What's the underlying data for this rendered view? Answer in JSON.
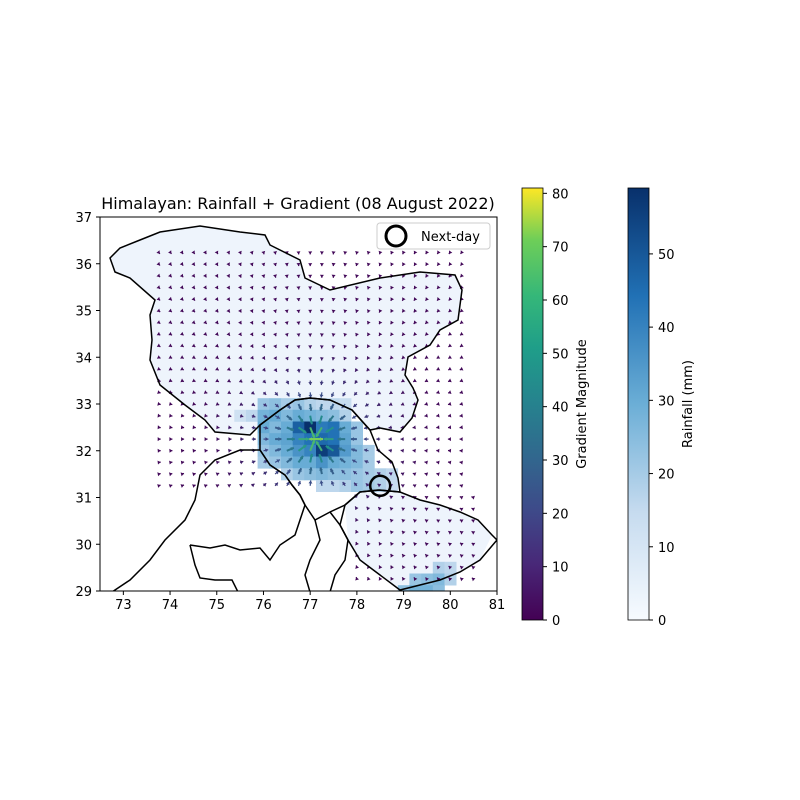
{
  "chart_data": {
    "type": "heatmap",
    "title": "Himalayan: Rainfall + Gradient (08 August 2022)",
    "xlabel": "",
    "ylabel": "",
    "xlim": [
      72.5,
      81
    ],
    "ylim": [
      29,
      37
    ],
    "x_ticks": [
      "73",
      "74",
      "75",
      "76",
      "77",
      "78",
      "79",
      "80",
      "81"
    ],
    "y_ticks": [
      "29",
      "30",
      "31",
      "32",
      "33",
      "34",
      "35",
      "36",
      "37"
    ],
    "grid_resolution_deg": 0.25,
    "rainfall_cells": [
      {
        "lon": 76.0,
        "lat": 33.0,
        "mm": 22
      },
      {
        "lon": 76.25,
        "lat": 33.0,
        "mm": 24
      },
      {
        "lon": 76.5,
        "lat": 33.0,
        "mm": 20
      },
      {
        "lon": 76.75,
        "lat": 33.0,
        "mm": 22
      },
      {
        "lon": 77.0,
        "lat": 33.0,
        "mm": 18
      },
      {
        "lon": 77.25,
        "lat": 33.0,
        "mm": 16
      },
      {
        "lon": 77.5,
        "lat": 33.0,
        "mm": 16
      },
      {
        "lon": 77.75,
        "lat": 33.0,
        "mm": 14
      },
      {
        "lon": 75.5,
        "lat": 32.75,
        "mm": 12
      },
      {
        "lon": 75.75,
        "lat": 32.75,
        "mm": 16
      },
      {
        "lon": 76.0,
        "lat": 32.75,
        "mm": 28
      },
      {
        "lon": 76.25,
        "lat": 32.75,
        "mm": 30
      },
      {
        "lon": 76.5,
        "lat": 32.75,
        "mm": 26
      },
      {
        "lon": 76.75,
        "lat": 32.75,
        "mm": 30
      },
      {
        "lon": 77.0,
        "lat": 32.75,
        "mm": 28
      },
      {
        "lon": 77.25,
        "lat": 32.75,
        "mm": 26
      },
      {
        "lon": 77.5,
        "lat": 32.75,
        "mm": 24
      },
      {
        "lon": 77.75,
        "lat": 32.75,
        "mm": 18
      },
      {
        "lon": 76.0,
        "lat": 32.5,
        "mm": 30
      },
      {
        "lon": 76.25,
        "lat": 32.5,
        "mm": 26
      },
      {
        "lon": 76.5,
        "lat": 32.5,
        "mm": 30
      },
      {
        "lon": 76.75,
        "lat": 32.5,
        "mm": 48
      },
      {
        "lon": 77.0,
        "lat": 32.5,
        "mm": 59
      },
      {
        "lon": 77.25,
        "lat": 32.5,
        "mm": 42
      },
      {
        "lon": 77.5,
        "lat": 32.5,
        "mm": 44
      },
      {
        "lon": 77.75,
        "lat": 32.5,
        "mm": 30
      },
      {
        "lon": 78.0,
        "lat": 32.5,
        "mm": 22
      },
      {
        "lon": 76.0,
        "lat": 32.25,
        "mm": 26
      },
      {
        "lon": 76.25,
        "lat": 32.25,
        "mm": 30
      },
      {
        "lon": 76.5,
        "lat": 32.25,
        "mm": 32
      },
      {
        "lon": 76.75,
        "lat": 32.25,
        "mm": 40
      },
      {
        "lon": 77.0,
        "lat": 32.25,
        "mm": 44
      },
      {
        "lon": 77.25,
        "lat": 32.25,
        "mm": 46
      },
      {
        "lon": 77.5,
        "lat": 32.25,
        "mm": 44
      },
      {
        "lon": 77.75,
        "lat": 32.25,
        "mm": 32
      },
      {
        "lon": 78.0,
        "lat": 32.25,
        "mm": 22
      },
      {
        "lon": 76.0,
        "lat": 32.0,
        "mm": 22
      },
      {
        "lon": 76.25,
        "lat": 32.0,
        "mm": 26
      },
      {
        "lon": 76.5,
        "lat": 32.0,
        "mm": 30
      },
      {
        "lon": 76.75,
        "lat": 32.0,
        "mm": 36
      },
      {
        "lon": 77.0,
        "lat": 32.0,
        "mm": 40
      },
      {
        "lon": 77.25,
        "lat": 32.0,
        "mm": 56
      },
      {
        "lon": 77.5,
        "lat": 32.0,
        "mm": 50
      },
      {
        "lon": 77.75,
        "lat": 32.0,
        "mm": 34
      },
      {
        "lon": 78.0,
        "lat": 32.0,
        "mm": 26
      },
      {
        "lon": 78.25,
        "lat": 32.0,
        "mm": 20
      },
      {
        "lon": 76.0,
        "lat": 31.75,
        "mm": 20
      },
      {
        "lon": 76.25,
        "lat": 31.75,
        "mm": 22
      },
      {
        "lon": 76.5,
        "lat": 31.75,
        "mm": 26
      },
      {
        "lon": 76.75,
        "lat": 31.75,
        "mm": 30
      },
      {
        "lon": 77.0,
        "lat": 31.75,
        "mm": 30
      },
      {
        "lon": 77.25,
        "lat": 31.75,
        "mm": 36
      },
      {
        "lon": 77.5,
        "lat": 31.75,
        "mm": 30
      },
      {
        "lon": 77.75,
        "lat": 31.75,
        "mm": 28
      },
      {
        "lon": 78.0,
        "lat": 31.75,
        "mm": 26
      },
      {
        "lon": 78.25,
        "lat": 31.75,
        "mm": 20
      },
      {
        "lon": 76.5,
        "lat": 31.5,
        "mm": 18
      },
      {
        "lon": 76.75,
        "lat": 31.5,
        "mm": 22
      },
      {
        "lon": 77.0,
        "lat": 31.5,
        "mm": 24
      },
      {
        "lon": 77.25,
        "lat": 31.5,
        "mm": 26
      },
      {
        "lon": 77.5,
        "lat": 31.5,
        "mm": 24
      },
      {
        "lon": 77.75,
        "lat": 31.5,
        "mm": 24
      },
      {
        "lon": 78.0,
        "lat": 31.5,
        "mm": 22
      },
      {
        "lon": 78.25,
        "lat": 31.5,
        "mm": 20
      },
      {
        "lon": 78.5,
        "lat": 31.5,
        "mm": 18
      },
      {
        "lon": 78.75,
        "lat": 31.5,
        "mm": 16
      },
      {
        "lon": 77.25,
        "lat": 31.25,
        "mm": 16
      },
      {
        "lon": 77.5,
        "lat": 31.25,
        "mm": 16
      },
      {
        "lon": 77.75,
        "lat": 31.25,
        "mm": 18
      },
      {
        "lon": 78.0,
        "lat": 31.25,
        "mm": 22
      },
      {
        "lon": 78.25,
        "lat": 31.25,
        "mm": 20
      },
      {
        "lon": 78.5,
        "lat": 31.25,
        "mm": 18
      },
      {
        "lon": 78.75,
        "lat": 31.25,
        "mm": 14
      },
      {
        "lon": 79.75,
        "lat": 29.5,
        "mm": 18
      },
      {
        "lon": 80.0,
        "lat": 29.5,
        "mm": 16
      },
      {
        "lon": 79.25,
        "lat": 29.25,
        "mm": 22
      },
      {
        "lon": 79.5,
        "lat": 29.25,
        "mm": 24
      },
      {
        "lon": 79.75,
        "lat": 29.25,
        "mm": 26
      },
      {
        "lon": 80.0,
        "lat": 29.25,
        "mm": 18
      },
      {
        "lon": 79.0,
        "lat": 29.0,
        "mm": 24
      },
      {
        "lon": 79.25,
        "lat": 29.0,
        "mm": 28
      },
      {
        "lon": 79.5,
        "lat": 29.0,
        "mm": 28
      },
      {
        "lon": 79.75,
        "lat": 29.0,
        "mm": 24
      }
    ],
    "rainfall_background_mm": 3,
    "gradient_hotspot": {
      "lon": 77.1,
      "lat": 32.25,
      "max_magnitude": 80
    },
    "next_day_marker": {
      "lon": 78.5,
      "lat": 31.25,
      "label": "Next-day"
    },
    "legend": {
      "entries": [
        "Next-day"
      ],
      "placement": "top-right"
    },
    "colorbars": [
      {
        "label": "Gradient Magnitude",
        "colormap": "viridis",
        "range": [
          0,
          81
        ],
        "ticks": [
          "0",
          "10",
          "20",
          "30",
          "40",
          "50",
          "60",
          "70",
          "80"
        ]
      },
      {
        "label": "Rainfall (mm)",
        "colormap": "Blues",
        "range": [
          0,
          59
        ],
        "ticks": [
          "0",
          "10",
          "20",
          "30",
          "40",
          "50"
        ]
      }
    ]
  },
  "colors": {
    "boundary": "#000000",
    "background": "#ffffff"
  }
}
